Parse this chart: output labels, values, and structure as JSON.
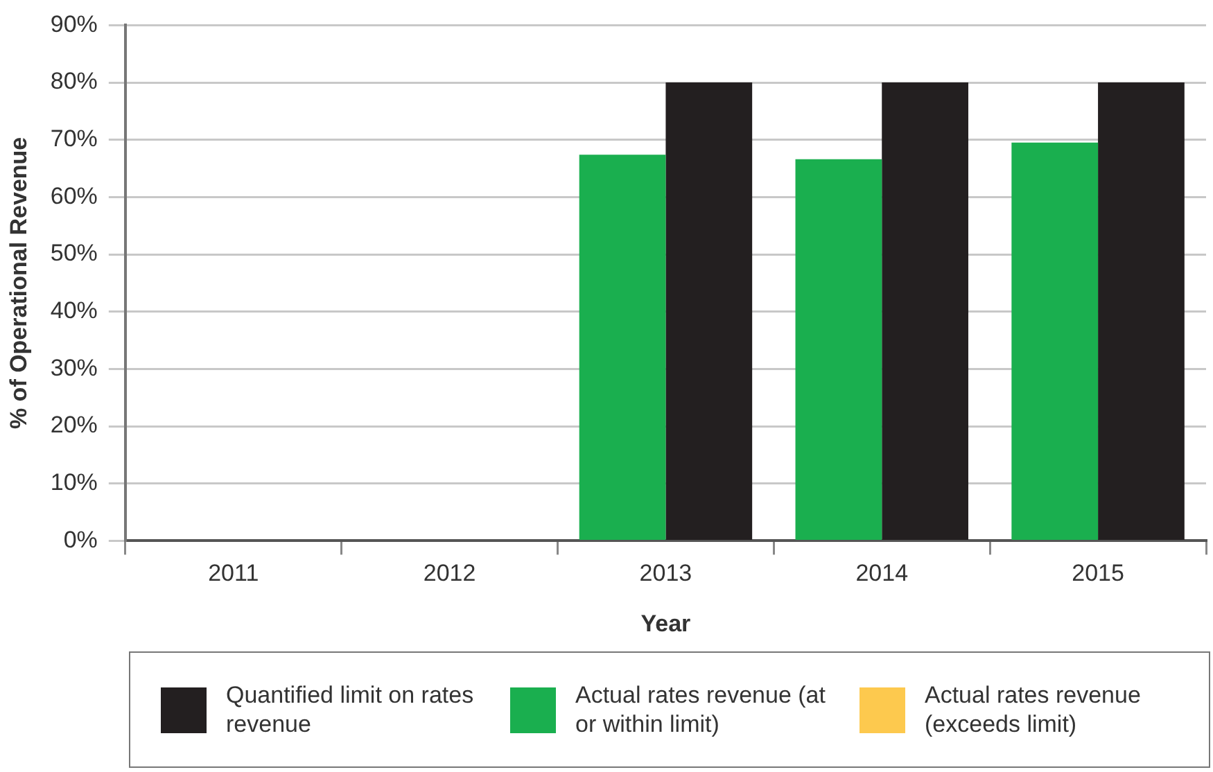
{
  "chart_data": {
    "type": "bar",
    "xlabel": "Year",
    "ylabel": "% of Operational Revenue",
    "categories": [
      "2011",
      "2012",
      "2013",
      "2014",
      "2015"
    ],
    "series": [
      {
        "name": "Quantified limit on rates revenue",
        "color": "#231f20",
        "values": [
          null,
          null,
          80,
          80,
          80
        ]
      },
      {
        "name": "Actual rates revenue (at or within limit)",
        "color": "#1aaf4f",
        "values": [
          null,
          null,
          67.4,
          66.6,
          69.5
        ]
      },
      {
        "name": "Actual rates revenue (exceeds limit)",
        "color": "#fdc94e",
        "values": [
          null,
          null,
          null,
          null,
          null
        ]
      }
    ],
    "ylim": [
      0,
      90
    ],
    "yticks": [
      {
        "value": 0,
        "label": "0%"
      },
      {
        "value": 10,
        "label": "10%"
      },
      {
        "value": 20,
        "label": "20%"
      },
      {
        "value": 30,
        "label": "30%"
      },
      {
        "value": 40,
        "label": "40%"
      },
      {
        "value": 50,
        "label": "50%"
      },
      {
        "value": 60,
        "label": "60%"
      },
      {
        "value": 70,
        "label": "70%"
      },
      {
        "value": 80,
        "label": "80%"
      },
      {
        "value": 90,
        "label": "90%"
      }
    ],
    "grid": "y",
    "legend": "bottom"
  }
}
